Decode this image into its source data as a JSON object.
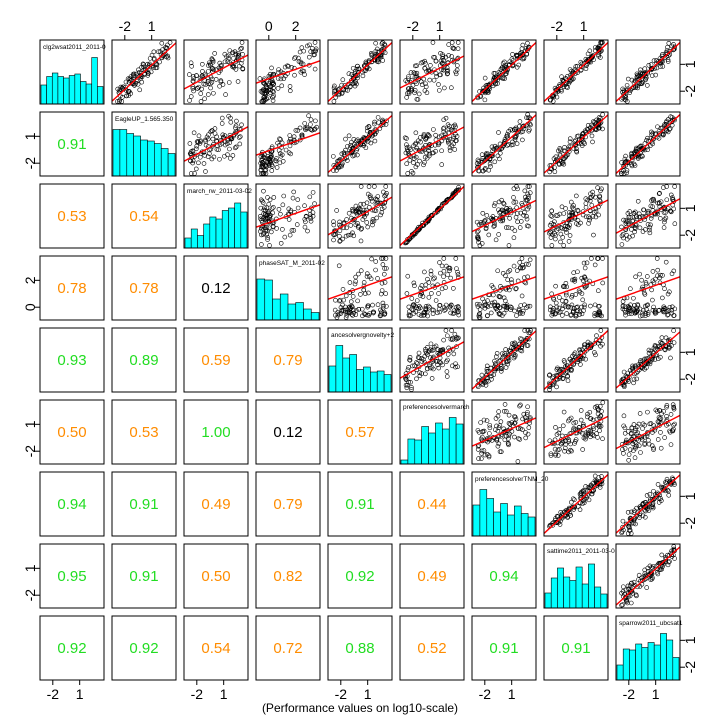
{
  "chart_data": {
    "type": "scatter",
    "subtype": "scatterplot-matrix",
    "xlabel": "(Performance values on log10-scale)",
    "scale": "log10",
    "variables": [
      "clg2wsat2011_2011-0",
      "EagleUP_1.565.350",
      "march_rw_2011-03-02",
      "phaseSAT_M_2011-02",
      "ancesolvergnovelty+2",
      "preferencesolvermarch",
      "preferencesolverTNM_20",
      "sattime2011_2011-03-0",
      "sparrow2011_ubcsat1"
    ],
    "axis_ticks": {
      "standard": [
        "-2",
        "1"
      ],
      "var4": [
        "0",
        "2"
      ]
    },
    "correlations": [
      {
        "row": 2,
        "col": 1,
        "value": "0.91",
        "color": "#22dd22"
      },
      {
        "row": 3,
        "col": 1,
        "value": "0.53",
        "color": "#ff8c00"
      },
      {
        "row": 3,
        "col": 2,
        "value": "0.54",
        "color": "#ff8c00"
      },
      {
        "row": 4,
        "col": 1,
        "value": "0.78",
        "color": "#ff8c00"
      },
      {
        "row": 4,
        "col": 2,
        "value": "0.78",
        "color": "#ff8c00"
      },
      {
        "row": 4,
        "col": 3,
        "value": "0.12",
        "color": "#000000"
      },
      {
        "row": 5,
        "col": 1,
        "value": "0.93",
        "color": "#22dd22"
      },
      {
        "row": 5,
        "col": 2,
        "value": "0.89",
        "color": "#22dd22"
      },
      {
        "row": 5,
        "col": 3,
        "value": "0.59",
        "color": "#ff8c00"
      },
      {
        "row": 5,
        "col": 4,
        "value": "0.79",
        "color": "#ff8c00"
      },
      {
        "row": 6,
        "col": 1,
        "value": "0.50",
        "color": "#ff8c00"
      },
      {
        "row": 6,
        "col": 2,
        "value": "0.53",
        "color": "#ff8c00"
      },
      {
        "row": 6,
        "col": 3,
        "value": "1.00",
        "color": "#22dd22"
      },
      {
        "row": 6,
        "col": 4,
        "value": "0.12",
        "color": "#000000"
      },
      {
        "row": 6,
        "col": 5,
        "value": "0.57",
        "color": "#ff8c00"
      },
      {
        "row": 7,
        "col": 1,
        "value": "0.94",
        "color": "#22dd22"
      },
      {
        "row": 7,
        "col": 2,
        "value": "0.91",
        "color": "#22dd22"
      },
      {
        "row": 7,
        "col": 3,
        "value": "0.49",
        "color": "#ff8c00"
      },
      {
        "row": 7,
        "col": 4,
        "value": "0.79",
        "color": "#ff8c00"
      },
      {
        "row": 7,
        "col": 5,
        "value": "0.91",
        "color": "#22dd22"
      },
      {
        "row": 7,
        "col": 6,
        "value": "0.44",
        "color": "#ff8c00"
      },
      {
        "row": 8,
        "col": 1,
        "value": "0.95",
        "color": "#22dd22"
      },
      {
        "row": 8,
        "col": 2,
        "value": "0.91",
        "color": "#22dd22"
      },
      {
        "row": 8,
        "col": 3,
        "value": "0.50",
        "color": "#ff8c00"
      },
      {
        "row": 8,
        "col": 4,
        "value": "0.82",
        "color": "#ff8c00"
      },
      {
        "row": 8,
        "col": 5,
        "value": "0.92",
        "color": "#22dd22"
      },
      {
        "row": 8,
        "col": 6,
        "value": "0.49",
        "color": "#ff8c00"
      },
      {
        "row": 8,
        "col": 7,
        "value": "0.94",
        "color": "#22dd22"
      },
      {
        "row": 9,
        "col": 1,
        "value": "0.92",
        "color": "#22dd22"
      },
      {
        "row": 9,
        "col": 2,
        "value": "0.92",
        "color": "#22dd22"
      },
      {
        "row": 9,
        "col": 3,
        "value": "0.54",
        "color": "#ff8c00"
      },
      {
        "row": 9,
        "col": 4,
        "value": "0.72",
        "color": "#ff8c00"
      },
      {
        "row": 9,
        "col": 5,
        "value": "0.88",
        "color": "#22dd22"
      },
      {
        "row": 9,
        "col": 6,
        "value": "0.52",
        "color": "#ff8c00"
      },
      {
        "row": 9,
        "col": 7,
        "value": "0.91",
        "color": "#22dd22"
      },
      {
        "row": 9,
        "col": 8,
        "value": "0.91",
        "color": "#22dd22"
      }
    ],
    "histograms": [
      [
        0.38,
        0.55,
        0.62,
        0.55,
        0.52,
        0.57,
        0.6,
        0.45,
        0.4,
        0.93,
        0.35
      ],
      [
        0.93,
        0.93,
        0.85,
        0.8,
        0.72,
        0.7,
        0.65,
        0.55,
        0.45
      ],
      [
        0.2,
        0.38,
        0.25,
        0.48,
        0.62,
        0.58,
        0.75,
        0.8,
        0.9,
        0.72
      ],
      [
        0.82,
        0.8,
        0.42,
        0.52,
        0.32,
        0.35,
        0.22,
        0.15
      ],
      [
        0.52,
        0.93,
        0.68,
        0.75,
        0.45,
        0.5,
        0.4,
        0.42,
        0.35
      ],
      [
        0.08,
        0.5,
        0.48,
        0.75,
        0.62,
        0.82,
        0.7,
        0.93,
        0.8
      ],
      [
        0.62,
        0.93,
        0.75,
        0.48,
        0.65,
        0.42,
        0.6,
        0.45,
        0.38
      ],
      [
        0.3,
        0.6,
        0.8,
        0.62,
        0.55,
        0.82,
        0.48,
        0.88,
        0.42,
        0.28
      ],
      [
        0.3,
        0.62,
        0.6,
        0.72,
        0.65,
        0.75,
        0.7,
        0.93,
        0.8,
        0.45
      ]
    ],
    "colors": {
      "histogram_fill": "#00ffff",
      "fit_line": "#ff0000",
      "high_correlation": "#22dd22",
      "medium_correlation": "#ff8c00",
      "low_correlation": "#000000"
    },
    "grid": false
  }
}
